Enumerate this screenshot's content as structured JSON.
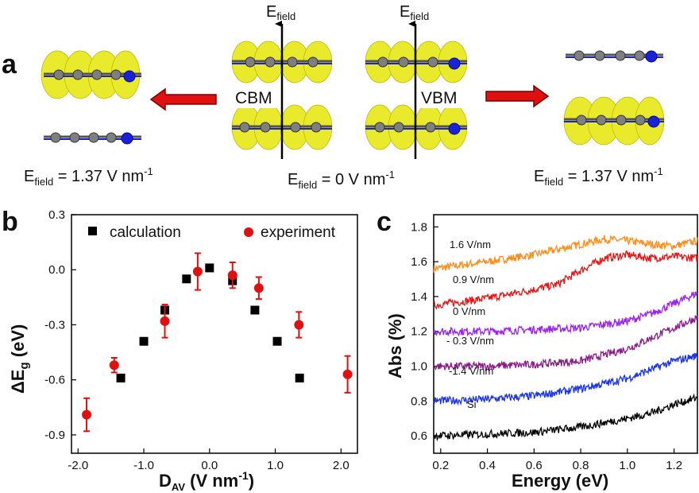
{
  "panel_a": {
    "letter": "a",
    "efield_arrow_label": "E",
    "efield_arrow_sub": "field",
    "cbm_label": "CBM",
    "vbm_label": "VBM",
    "eq_left": {
      "main": "E",
      "sub": "field",
      "rest": " = 1.37 V nm",
      "sup": "-1"
    },
    "eq_center": {
      "main": "E",
      "sub": "field",
      "rest": " = 0 V nm",
      "sup": "-1"
    },
    "eq_right": {
      "main": "E",
      "sub": "field",
      "rest": " = 1.37 V nm",
      "sup": "-1"
    },
    "colors": {
      "isosurface": "#e9ea2c",
      "carbon": "#808080",
      "nitrogen": "#1a22d8",
      "arrow": "#e01010"
    }
  },
  "chart_data": [
    {
      "panel": "b",
      "type": "scatter",
      "xlabel_main": "D",
      "xlabel_sub": "AV",
      "xlabel_rest": " (V nm",
      "xlabel_sup": "-1",
      "xlabel_end": ")",
      "ylabel_main": "ΔE",
      "ylabel_sub": "g",
      "ylabel_rest": " (eV)",
      "xlim": [
        -2.1,
        2.25
      ],
      "ylim": [
        -1.0,
        0.3
      ],
      "xticks": [
        "-2.0",
        "-1.0",
        "0.0",
        "1.0",
        "2.0"
      ],
      "xtick_values": [
        -2.0,
        -1.0,
        0.0,
        1.0,
        2.0
      ],
      "yticks": [
        "0.3",
        "0.0",
        "-0.3",
        "-0.6",
        "-0.9"
      ],
      "ytick_values": [
        0.3,
        0.0,
        -0.3,
        -0.6,
        -0.9
      ],
      "legend_position": "top",
      "series": [
        {
          "name": "calculation",
          "marker": "square",
          "color": "#000000",
          "x": [
            -1.35,
            -1.0,
            -0.68,
            -0.35,
            0.0,
            0.35,
            0.69,
            1.03,
            1.37
          ],
          "y": [
            -0.59,
            -0.39,
            -0.22,
            -0.05,
            0.01,
            -0.06,
            -0.22,
            -0.39,
            -0.59
          ]
        },
        {
          "name": "experiment",
          "marker": "circle",
          "color": "#e01010",
          "x": [
            -1.87,
            -1.45,
            -0.68,
            -0.18,
            0.35,
            0.75,
            1.36,
            2.1
          ],
          "y": [
            -0.79,
            -0.52,
            -0.28,
            -0.01,
            -0.03,
            -0.1,
            -0.3,
            -0.57
          ],
          "yerr": [
            0.09,
            0.04,
            0.09,
            0.1,
            0.07,
            0.06,
            0.07,
            0.1
          ]
        }
      ]
    },
    {
      "panel": "c",
      "type": "line",
      "xlabel": "Energy (eV)",
      "ylabel": "Abs (%)",
      "xlim": [
        0.17,
        1.3
      ],
      "ylim": [
        0.5,
        1.87
      ],
      "xticks": [
        "0.2",
        "0.4",
        "0.6",
        "0.8",
        "1.0",
        "1.2"
      ],
      "xtick_values": [
        0.2,
        0.4,
        0.6,
        0.8,
        1.0,
        1.2
      ],
      "yticks": [
        "0.6",
        "0.8",
        "1.0",
        "1.2",
        "1.4",
        "1.6",
        "1.8"
      ],
      "ytick_values": [
        0.6,
        0.8,
        1.0,
        1.2,
        1.4,
        1.6,
        1.8
      ],
      "series": [
        {
          "name": "1.6 V/nm",
          "color": "#ff8c1a",
          "x": [
            0.17,
            0.4,
            0.6,
            0.8,
            0.9,
            1.0,
            1.1,
            1.2,
            1.3
          ],
          "y": [
            1.56,
            1.6,
            1.64,
            1.7,
            1.73,
            1.72,
            1.7,
            1.69,
            1.72
          ]
        },
        {
          "name": "0.9 V/nm",
          "color": "#ee1111",
          "x": [
            0.17,
            0.4,
            0.6,
            0.7,
            0.8,
            0.9,
            1.0,
            1.1,
            1.2,
            1.3
          ],
          "y": [
            1.35,
            1.39,
            1.44,
            1.47,
            1.55,
            1.62,
            1.64,
            1.62,
            1.63,
            1.62
          ]
        },
        {
          "name": "0 V/nm",
          "color": "#9a22ee",
          "x": [
            0.17,
            0.4,
            0.6,
            0.8,
            1.0,
            1.1,
            1.2,
            1.3
          ],
          "y": [
            1.2,
            1.2,
            1.21,
            1.22,
            1.26,
            1.3,
            1.36,
            1.42
          ]
        },
        {
          "name": "- 0.3 V/nm",
          "color": "#8a1a8a",
          "x": [
            0.17,
            0.4,
            0.6,
            0.8,
            1.0,
            1.1,
            1.2,
            1.3
          ],
          "y": [
            1.0,
            1.0,
            1.01,
            1.03,
            1.1,
            1.16,
            1.22,
            1.28
          ]
        },
        {
          "name": "-1.4 V/nm",
          "color": "#1a33ee",
          "x": [
            0.17,
            0.4,
            0.6,
            0.8,
            1.0,
            1.1,
            1.2,
            1.3
          ],
          "y": [
            0.8,
            0.81,
            0.83,
            0.87,
            0.93,
            0.98,
            1.03,
            1.06
          ]
        },
        {
          "name": "Si",
          "color": "#000000",
          "x": [
            0.17,
            0.4,
            0.6,
            0.8,
            1.0,
            1.1,
            1.2,
            1.3
          ],
          "y": [
            0.6,
            0.61,
            0.62,
            0.65,
            0.7,
            0.73,
            0.78,
            0.82
          ]
        }
      ]
    }
  ]
}
